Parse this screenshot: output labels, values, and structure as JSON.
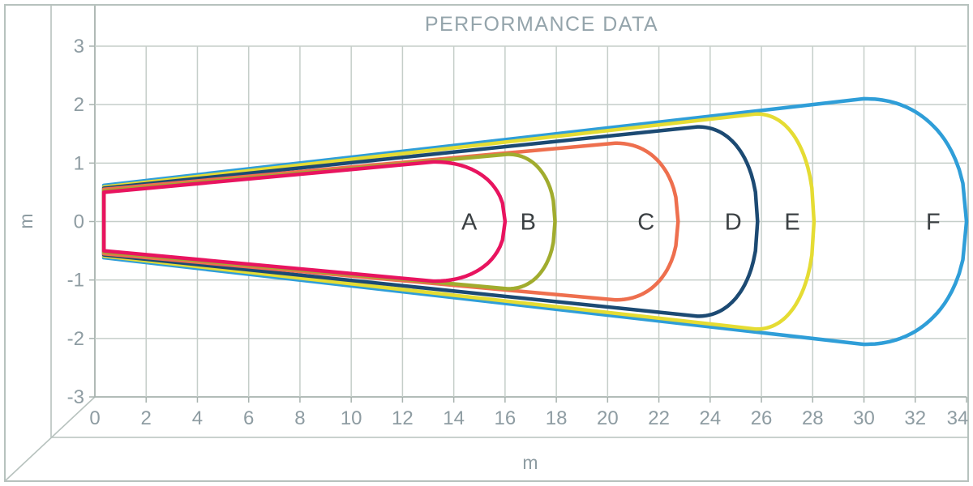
{
  "title": "PERFORMANCE DATA",
  "axis": {
    "x_unit": "m",
    "y_unit": "m",
    "x_ticks": [
      0,
      2,
      4,
      6,
      8,
      10,
      12,
      14,
      16,
      18,
      20,
      22,
      24,
      26,
      28,
      30,
      32,
      34
    ],
    "y_ticks": [
      3,
      2,
      1,
      0,
      -1,
      -2,
      -3
    ]
  },
  "colors": {
    "background": "#ffffff",
    "frame": "#b7c2be",
    "grid": "#c5cec9",
    "tick": "#a7b2ae",
    "tick_text": "#8e9ca2",
    "title_text": "#94a4ab",
    "curve_label_text": "#3b4043"
  },
  "chart_data": {
    "type": "area",
    "title": "PERFORMANCE DATA",
    "xlabel": "m",
    "ylabel": "m",
    "xlim": [
      0,
      34
    ],
    "ylim": [
      -3,
      3
    ],
    "grid": true,
    "legend_position": "none",
    "description": "Six nested symmetric beam/teardrop performance lobes starting near x=0.35 m with ~±0.5-0.6 m half-width, expanding linearly to a maximum half-width then rounding to a tip on the y=0 axis.",
    "series": [
      {
        "name": "A",
        "color": "#e8145f",
        "start_x": 0.35,
        "start_half_width": 0.5,
        "shoulder_x": 13.2,
        "max_half_width": 1.02,
        "tip_x": 16.0,
        "label_x": 14.6
      },
      {
        "name": "B",
        "color": "#a1ac2e",
        "start_x": 0.35,
        "start_half_width": 0.52,
        "shoulder_x": 16.1,
        "max_half_width": 1.15,
        "tip_x": 17.95,
        "label_x": 16.9
      },
      {
        "name": "C",
        "color": "#ee6f4e",
        "start_x": 0.35,
        "start_half_width": 0.55,
        "shoulder_x": 20.3,
        "max_half_width": 1.34,
        "tip_x": 22.75,
        "label_x": 21.5
      },
      {
        "name": "D",
        "color": "#1c4a73",
        "start_x": 0.35,
        "start_half_width": 0.57,
        "shoulder_x": 23.5,
        "max_half_width": 1.62,
        "tip_x": 25.85,
        "label_x": 24.9
      },
      {
        "name": "E",
        "color": "#e5dc33",
        "start_x": 0.35,
        "start_half_width": 0.59,
        "shoulder_x": 25.8,
        "max_half_width": 1.84,
        "tip_x": 28.05,
        "label_x": 27.2
      },
      {
        "name": "F",
        "color": "#2f9ed8",
        "start_x": 0.35,
        "start_half_width": 0.62,
        "shoulder_x": 30.0,
        "max_half_width": 2.1,
        "tip_x": 34.0,
        "label_x": 32.7
      }
    ]
  }
}
